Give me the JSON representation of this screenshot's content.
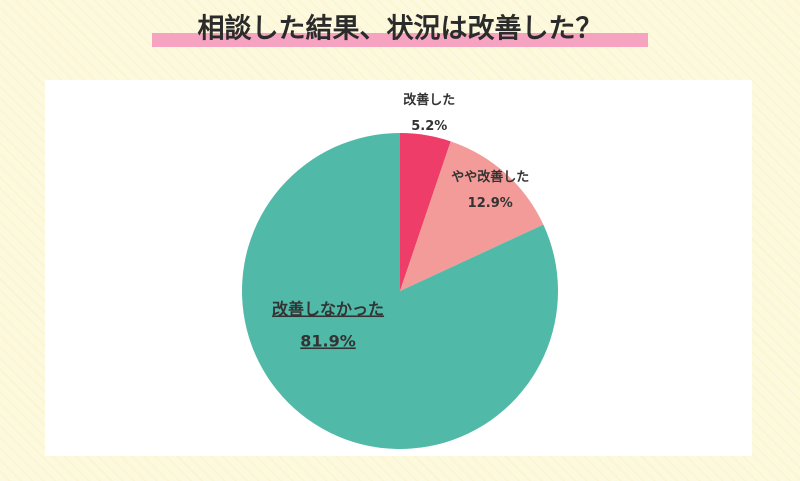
{
  "chart_data": {
    "type": "pie",
    "title": "相談した結果、状況は改善した？",
    "categories": [
      "改善した",
      "やや改善した",
      "改善しなかった"
    ],
    "values": [
      5.2,
      12.9,
      81.9
    ],
    "value_labels": [
      "5.2%",
      "12.9%",
      "81.9%"
    ],
    "colors": [
      "#ee3d69",
      "#f29b98",
      "#51b9a8"
    ]
  }
}
